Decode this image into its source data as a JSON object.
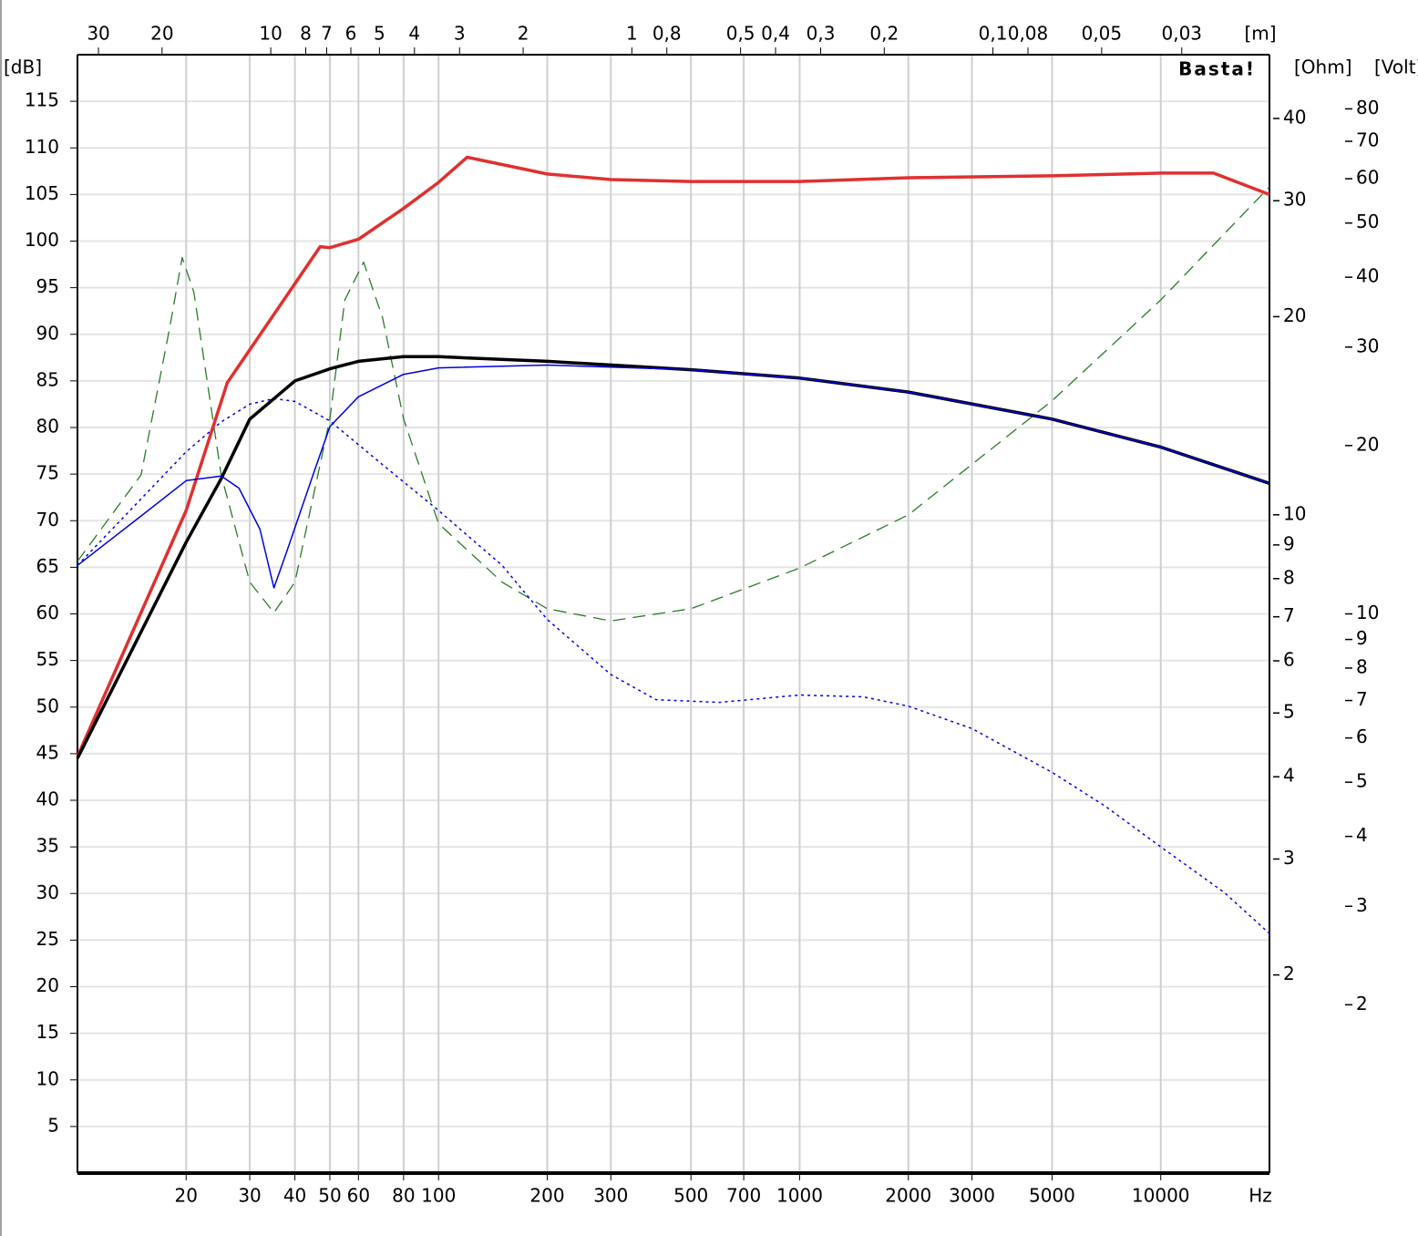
{
  "chart_data": {
    "type": "line",
    "xscale": "log",
    "xlabel": "Hz",
    "ylabel": "[dB]",
    "x2label": "[m]",
    "y2label": "[Ohm]",
    "y3label": "[Volt]",
    "watermark": "Basta!",
    "grid": true,
    "xlim": [
      10,
      20000
    ],
    "xticks": [
      20,
      30,
      40,
      50,
      60,
      80,
      100,
      200,
      300,
      500,
      700,
      1000,
      2000,
      3000,
      5000,
      10000
    ],
    "x2lim": [
      34.3,
      0.01715
    ],
    "x2ticks": [
      30,
      20,
      10,
      8,
      7,
      6,
      5,
      4,
      3,
      2,
      1,
      {
        "value": 0.8,
        "label": "0,8"
      },
      {
        "value": 0.5,
        "label": "0,5"
      },
      {
        "value": 0.4,
        "label": "0,4"
      },
      {
        "value": 0.3,
        "label": "0,3"
      },
      {
        "value": 0.2,
        "label": "0,2"
      },
      {
        "value": 0.1,
        "label": "0,1"
      },
      {
        "value": 0.08,
        "label": "0,08"
      },
      {
        "value": 0.05,
        "label": "0,05"
      },
      {
        "value": 0.03,
        "label": "0,03"
      }
    ],
    "ylim": [
      0,
      120
    ],
    "yticks": [
      5,
      10,
      15,
      20,
      25,
      30,
      35,
      40,
      45,
      50,
      55,
      60,
      65,
      70,
      75,
      80,
      85,
      90,
      95,
      100,
      105,
      110,
      115
    ],
    "y2scale": "log",
    "y2lim": [
      1,
      50
    ],
    "y2ticks": [
      40,
      30,
      20,
      10,
      9,
      8,
      7,
      6,
      5,
      4,
      3,
      2
    ],
    "y3scale": "log",
    "y3lim": [
      1,
      100
    ],
    "y3ticks": [
      80,
      70,
      60,
      50,
      40,
      30,
      20,
      10,
      9,
      8,
      7,
      6,
      5,
      4,
      3,
      2
    ],
    "series": [
      {
        "color": "#2a7a2a",
        "dash": "14,8",
        "width": 1.3,
        "axis": "y2",
        "x": [
          10,
          15,
          18,
          19.5,
          21,
          25,
          30,
          35,
          40,
          50,
          55,
          62,
          70,
          80,
          100,
          150,
          200,
          300,
          500,
          1000,
          2000,
          5000,
          10000,
          20000
        ],
        "values": [
          8.5,
          11.5,
          19.2,
          24.6,
          21.8,
          11.5,
          7.9,
          7.1,
          7.9,
          14,
          21.2,
          24.2,
          19.9,
          14,
          9.7,
          7.9,
          7.2,
          6.9,
          7.2,
          8.3,
          10,
          14.9,
          21.2,
          31.5
        ]
      },
      {
        "color": "#0000e0",
        "dash": "3,4",
        "width": 1.5,
        "x": [
          10,
          20,
          25,
          30,
          35,
          40,
          50,
          70,
          100,
          150,
          200,
          300,
          400,
          600,
          1000,
          1500,
          2000,
          3000,
          5000,
          7000,
          10000,
          15000,
          20000
        ],
        "values": [
          65.2,
          77.4,
          80.6,
          82.5,
          83.1,
          82.8,
          80.7,
          76,
          71.1,
          65.2,
          59.4,
          53.5,
          50.8,
          50.5,
          51.3,
          51.1,
          50.1,
          47.7,
          43,
          39.4,
          35,
          30.1,
          25.7
        ]
      },
      {
        "color": "#e03030",
        "dash": "",
        "width": 3.5,
        "x": [
          10,
          20,
          26,
          47,
          50,
          60,
          80,
          100,
          120,
          200,
          300,
          500,
          1000,
          2000,
          5000,
          10000,
          14000,
          20000
        ],
        "values": [
          44.7,
          71.1,
          84.8,
          99.4,
          99.3,
          100.2,
          103.5,
          106.3,
          109,
          107.2,
          106.6,
          106.4,
          106.4,
          106.8,
          107,
          107.3,
          107.3,
          105
        ]
      },
      {
        "color": "#000000",
        "dash": "",
        "width": 3.5,
        "x": [
          10,
          20,
          25,
          30,
          40,
          50,
          60,
          80,
          100,
          200,
          500,
          1000,
          2000,
          5000,
          10000,
          20000
        ],
        "values": [
          44.5,
          67.7,
          74.5,
          80.9,
          85,
          86.3,
          87.1,
          87.6,
          87.6,
          87.1,
          86.2,
          85.3,
          83.8,
          80.9,
          77.9,
          74
        ]
      },
      {
        "color": "#0000e0",
        "dash": "",
        "width": 1.5,
        "x": [
          10,
          15,
          20,
          25,
          28,
          32,
          35,
          38,
          45,
          50,
          60,
          80,
          100,
          200,
          500,
          1000,
          2000,
          5000,
          10000,
          20000
        ],
        "values": [
          65.2,
          70.5,
          74.3,
          74.8,
          73.5,
          69.1,
          62.8,
          66.7,
          75,
          80.1,
          83.3,
          85.7,
          86.4,
          86.7,
          86.2,
          85.3,
          83.8,
          80.9,
          77.9,
          74
        ]
      }
    ]
  }
}
